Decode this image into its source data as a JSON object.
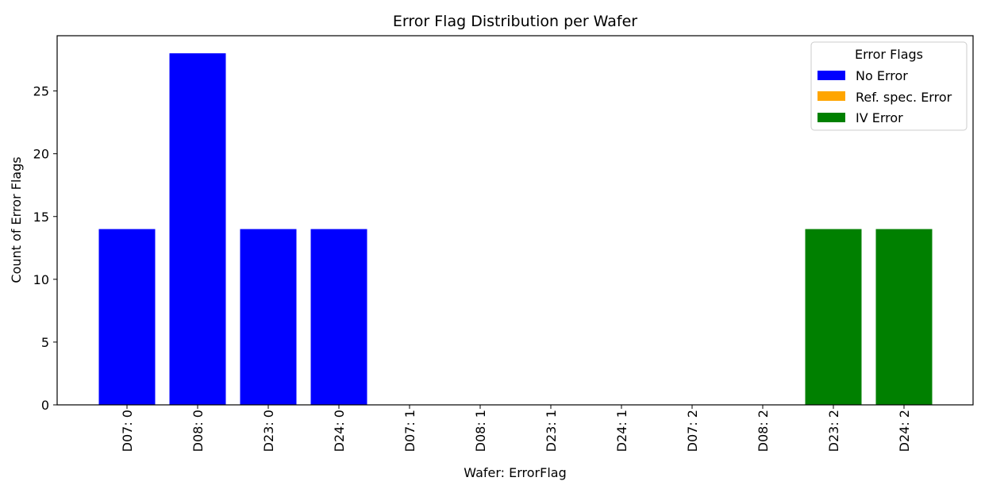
{
  "chart_data": {
    "type": "bar",
    "title": "Error Flag Distribution per Wafer",
    "xlabel": "Wafer: ErrorFlag",
    "ylabel": "Count of Error Flags",
    "ylim": [
      0,
      29.4
    ],
    "yticks": [
      0,
      5,
      10,
      15,
      20,
      25
    ],
    "categories": [
      "D07: 0",
      "D08: 0",
      "D23: 0",
      "D24: 0",
      "D07: 1",
      "D08: 1",
      "D23: 1",
      "D24: 1",
      "D07: 2",
      "D08: 2",
      "D23: 2",
      "D24: 2"
    ],
    "values": [
      14,
      28,
      14,
      14,
      0,
      0,
      0,
      0,
      0,
      0,
      14,
      14
    ],
    "bar_flags": [
      0,
      0,
      0,
      0,
      1,
      1,
      1,
      1,
      2,
      2,
      2,
      2
    ],
    "legend": {
      "title": "Error Flags",
      "placement": "top-right",
      "entries": [
        {
          "label": "No Error",
          "color": "#0000ff"
        },
        {
          "label": "Ref. spec. Error",
          "color": "#ffa500"
        },
        {
          "label": "IV Error",
          "color": "#008000"
        }
      ]
    },
    "grid": false
  }
}
